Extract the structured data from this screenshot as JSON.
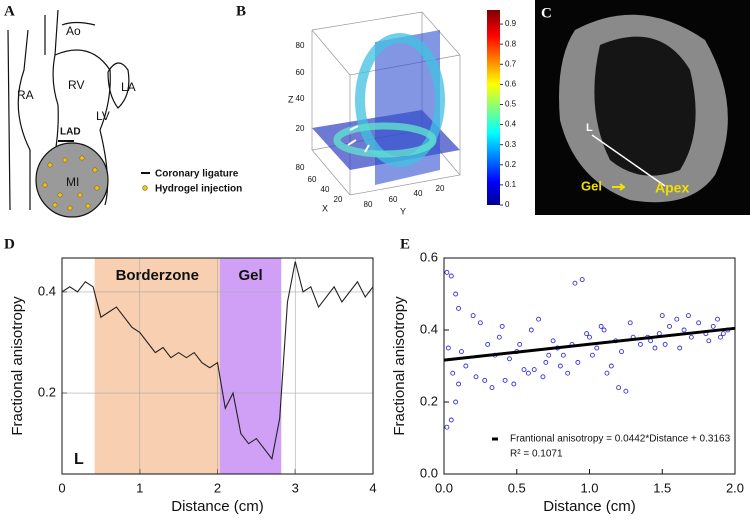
{
  "panels": {
    "a": {
      "label": "A",
      "labels": [
        "Ao",
        "RA",
        "RV",
        "LA",
        "LV",
        "LAD",
        "MI"
      ],
      "legend": [
        "Coronary ligature",
        "Hydrogel injection"
      ]
    },
    "b": {
      "label": "B",
      "x_label": "X",
      "y_label": "Y",
      "z_label": "Z",
      "z_ticks": [
        20,
        40,
        60,
        80
      ],
      "x_ticks": [
        80,
        60,
        40,
        20
      ],
      "y_ticks": [
        80,
        60,
        40,
        20
      ],
      "colorbar_ticks": [
        0,
        0.1,
        0.2,
        0.3,
        0.4,
        0.5,
        0.6,
        0.7,
        0.8,
        0.9
      ],
      "colorbar_lim": [
        0,
        0.97
      ]
    },
    "c": {
      "label": "C",
      "labels": [
        "L",
        "Gel",
        "Apex"
      ]
    }
  },
  "chart_data": [
    {
      "type": "line",
      "panel_label": "D",
      "xlabel": "Distance (cm)",
      "ylabel": "Fractional anisotropy",
      "x": [
        0,
        0.1,
        0.2,
        0.3,
        0.4,
        0.5,
        0.6,
        0.7,
        0.8,
        0.9,
        1.0,
        1.1,
        1.2,
        1.3,
        1.4,
        1.5,
        1.6,
        1.7,
        1.8,
        1.9,
        2.0,
        2.1,
        2.2,
        2.3,
        2.4,
        2.5,
        2.6,
        2.7,
        2.8,
        2.9,
        3.0,
        3.1,
        3.2,
        3.3,
        3.4,
        3.5,
        3.6,
        3.7,
        3.8,
        3.9,
        4.0
      ],
      "series": [
        {
          "color": "#222222",
          "values": [
            0.4,
            0.41,
            0.4,
            0.42,
            0.41,
            0.35,
            0.36,
            0.37,
            0.35,
            0.33,
            0.32,
            0.3,
            0.28,
            0.29,
            0.27,
            0.28,
            0.27,
            0.28,
            0.26,
            0.25,
            0.26,
            0.17,
            0.2,
            0.12,
            0.1,
            0.11,
            0.09,
            0.07,
            0.15,
            0.38,
            0.46,
            0.4,
            0.41,
            0.37,
            0.39,
            0.41,
            0.38,
            0.4,
            0.42,
            0.39,
            0.41
          ]
        }
      ],
      "xlim": [
        0,
        4
      ],
      "ylim": [
        0.04,
        0.467
      ],
      "xticks": [
        0,
        1,
        2,
        3,
        4
      ],
      "yticks": [
        0.2,
        0.4
      ],
      "grid": true,
      "regions": [
        {
          "label": "Borderzone",
          "range": [
            0.42,
            2.03
          ],
          "color": "#f8cfb0"
        },
        {
          "label": "Gel",
          "range": [
            2.03,
            2.82
          ],
          "color": "#cfa0f5"
        }
      ],
      "annotation": "L"
    },
    {
      "type": "scatter",
      "panel_label": "E",
      "xlabel": "Distance (cm)",
      "ylabel": "Fractional anisotropy",
      "x": [
        0.02,
        0.05,
        0.08,
        0.1,
        0.12,
        0.15,
        0.05,
        0.08,
        0.1,
        0.02,
        0.03,
        0.06,
        0.2,
        0.25,
        0.3,
        0.35,
        0.22,
        0.28,
        0.33,
        0.38,
        0.4,
        0.45,
        0.5,
        0.55,
        0.42,
        0.48,
        0.52,
        0.58,
        0.6,
        0.65,
        0.7,
        0.75,
        0.62,
        0.68,
        0.72,
        0.78,
        0.8,
        0.85,
        0.9,
        0.95,
        0.82,
        0.88,
        0.92,
        0.98,
        1.0,
        1.05,
        1.1,
        1.15,
        1.02,
        1.08,
        1.12,
        1.18,
        1.2,
        1.25,
        1.3,
        1.35,
        1.22,
        1.28,
        1.4,
        1.45,
        1.5,
        1.55,
        1.42,
        1.48,
        1.52,
        1.6,
        1.65,
        1.7,
        1.75,
        1.62,
        1.68,
        1.8,
        1.85,
        1.9,
        1.95,
        1.82,
        1.88,
        1.92
      ],
      "series": [
        {
          "color": "#3535d8",
          "values": [
            0.56,
            0.55,
            0.5,
            0.46,
            0.34,
            0.3,
            0.15,
            0.2,
            0.25,
            0.13,
            0.35,
            0.28,
            0.44,
            0.42,
            0.36,
            0.33,
            0.27,
            0.26,
            0.24,
            0.38,
            0.41,
            0.32,
            0.34,
            0.29,
            0.26,
            0.25,
            0.36,
            0.28,
            0.4,
            0.43,
            0.31,
            0.37,
            0.29,
            0.27,
            0.33,
            0.35,
            0.3,
            0.28,
            0.53,
            0.54,
            0.33,
            0.36,
            0.31,
            0.39,
            0.38,
            0.35,
            0.4,
            0.3,
            0.33,
            0.41,
            0.28,
            0.37,
            0.24,
            0.23,
            0.38,
            0.36,
            0.34,
            0.42,
            0.38,
            0.35,
            0.44,
            0.41,
            0.37,
            0.39,
            0.36,
            0.43,
            0.4,
            0.38,
            0.42,
            0.35,
            0.44,
            0.39,
            0.41,
            0.38,
            0.4,
            0.37,
            0.43,
            0.39
          ]
        }
      ],
      "fit": {
        "x": [
          0,
          2.0
        ],
        "values": [
          0.3163,
          0.4047
        ],
        "color": "#000000"
      },
      "legend": [
        "Frantional anisotropy = 0.0442*Distance + 0.3163",
        "R² = 0.1071"
      ],
      "xlim": [
        0,
        2.0
      ],
      "ylim": [
        0,
        0.6
      ],
      "xticks": [
        {
          "value": 0,
          "label": "0.0"
        },
        {
          "value": 0.5,
          "label": "0.5"
        },
        {
          "value": 1.0,
          "label": "1.0"
        },
        {
          "value": 1.5,
          "label": "1.5"
        },
        {
          "value": 2.0,
          "label": "2.0"
        }
      ],
      "yticks": [
        {
          "value": 0,
          "label": "0.0"
        },
        {
          "value": 0.2,
          "label": "0.2"
        },
        {
          "value": 0.4,
          "label": "0.4"
        },
        {
          "value": 0.6,
          "label": "0.6"
        }
      ],
      "grid": false
    }
  ]
}
